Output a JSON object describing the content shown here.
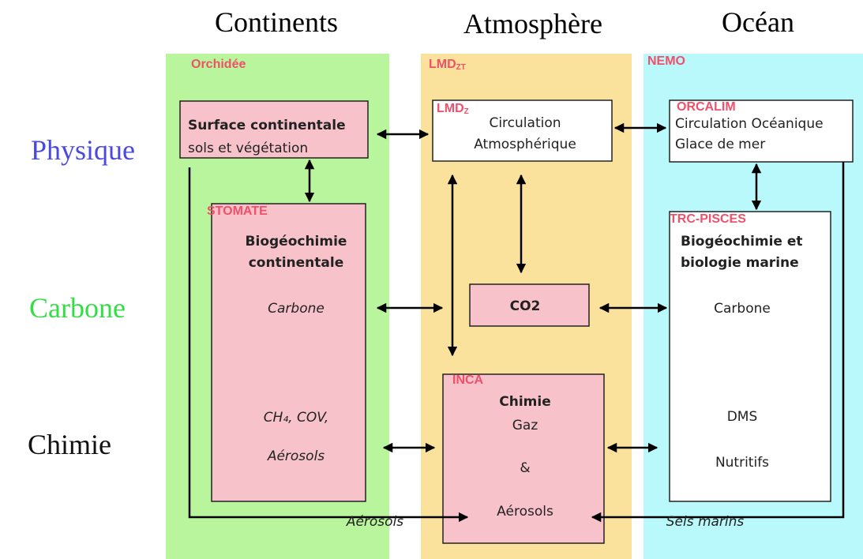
{
  "columns": [
    "Continents",
    "Atmosphère",
    "Océan"
  ],
  "rows": [
    "Physique",
    "Carbone",
    "Chimie"
  ],
  "models": {
    "continents": "Orchidée",
    "atmosphere": {
      "name": "LMD",
      "sub": "ZT"
    },
    "ocean": "NEMO"
  },
  "components": {
    "surface": {
      "lines": [
        "Surface continentale",
        "sols et végétation"
      ]
    },
    "stomate": {
      "label": "STOMATE",
      "lines": [
        "Biogéochimie",
        "continentale",
        "Carbone",
        "CH₄, COV,",
        "Aérosols"
      ]
    },
    "lmdz": {
      "label": "LMD",
      "label_sub": "Z",
      "lines": [
        "Circulation",
        "Atmosphérique"
      ]
    },
    "co2": {
      "lines": [
        "CO2"
      ]
    },
    "inca": {
      "label": "INCA",
      "lines": [
        "Chimie",
        "Gaz",
        "&",
        "Aérosols"
      ]
    },
    "orcalim": {
      "label": "ORCALIM",
      "lines": [
        "Circulation Océanique",
        "Glace de mer"
      ]
    },
    "pisces": {
      "label": "TRC-PISCES",
      "lines": [
        "Biogéochimie et",
        "biologie marine",
        "Carbone",
        "DMS",
        "Nutritifs"
      ]
    }
  },
  "flows": [
    "Aérosols",
    "Sels marins"
  ]
}
